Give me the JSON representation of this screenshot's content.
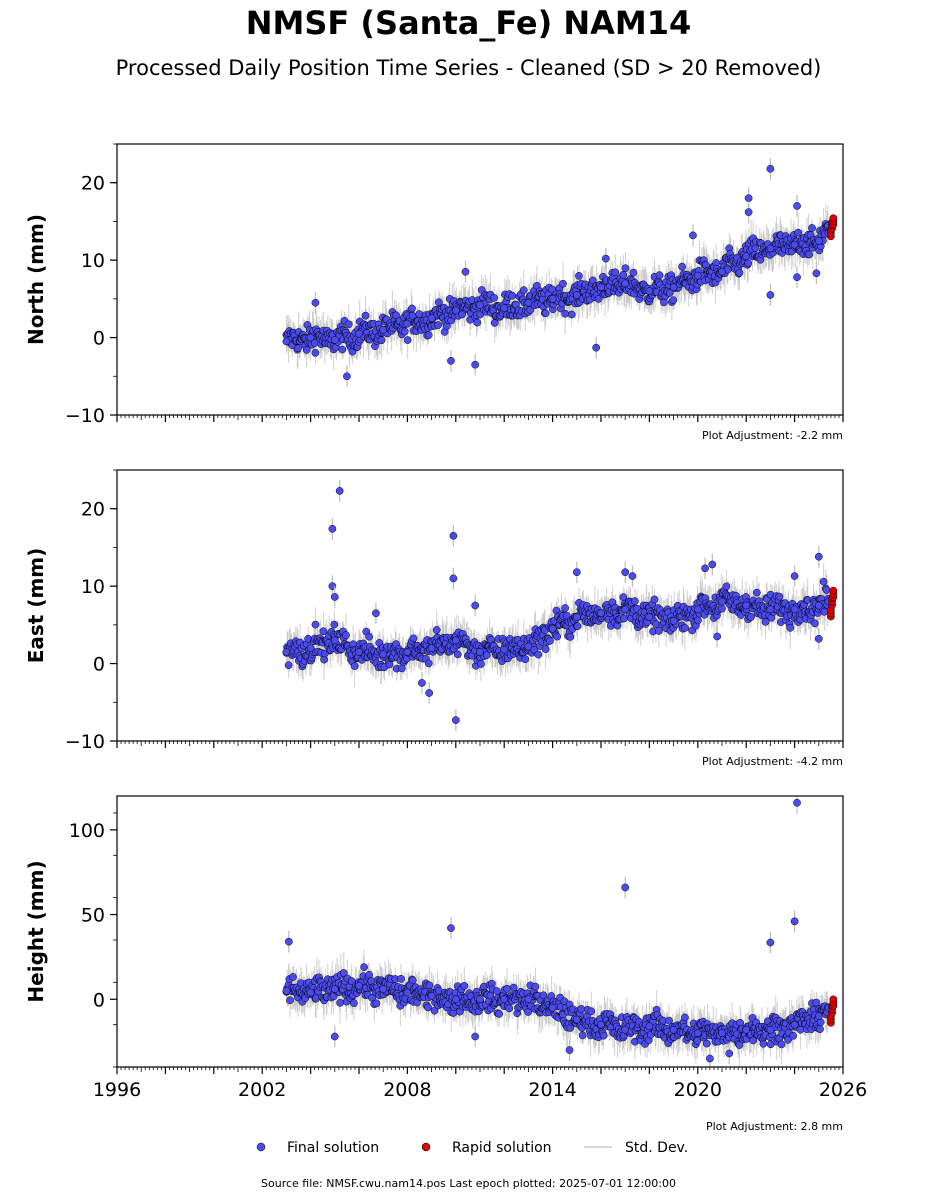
{
  "title": "NMSF (Santa_Fe) NAM14",
  "subtitle": "Processed Daily Position Time Series - Cleaned (SD > 20 Removed)",
  "source_text": "Source file: NMSF.cwu.nam14.pos  Last epoch plotted: 2025-07-01 12:00:00",
  "legend": [
    {
      "label": "Final solution",
      "color": "#4b4bf0",
      "marker": "dot"
    },
    {
      "label": "Rapid solution",
      "color": "#e00000",
      "marker": "dot"
    },
    {
      "label": "Std. Dev.",
      "color": "#cccccc",
      "marker": "line"
    }
  ],
  "colors": {
    "final": "#4b4bf0",
    "rapid": "#e00000",
    "stddev": "#bbbbbb",
    "edge": "#000000"
  },
  "chart_data": [
    {
      "type": "scatter",
      "ylabel": "North (mm)",
      "xlim": [
        1996,
        2026
      ],
      "ylim": [
        -10,
        25
      ],
      "yticks": [
        -10,
        0,
        10,
        20
      ],
      "xtick_labels": [
        "1996",
        "2002",
        "2008",
        "2014",
        "2020",
        "2026"
      ],
      "show_xtick_labels": false,
      "adjustment": "Plot Adjustment: -2.2 mm",
      "series": [
        {
          "name": "Final solution",
          "x": [
            2003.0,
            2004.0,
            2005.0,
            2006.0,
            2007.0,
            2008.0,
            2009.0,
            2010.0,
            2011.0,
            2012.0,
            2013.0,
            2014.0,
            2015.0,
            2016.0,
            2017.0,
            2018.0,
            2019.0,
            2020.0,
            2021.0,
            2022.0,
            2023.0,
            2024.0,
            2025.0,
            2025.4
          ],
          "y": [
            -0.5,
            0.0,
            -0.3,
            0.5,
            1.0,
            1.8,
            2.5,
            3.5,
            4.2,
            3.8,
            4.5,
            5.0,
            5.5,
            6.5,
            7.0,
            6.0,
            6.5,
            8.0,
            8.5,
            10.5,
            11.5,
            12.0,
            12.5,
            13.5
          ]
        },
        {
          "name": "Rapid solution",
          "x": [
            2025.5,
            2025.55,
            2025.6
          ],
          "y": [
            13.5,
            14.5,
            15.0
          ]
        }
      ],
      "outliers": [
        [
          2004.2,
          4.5
        ],
        [
          2005.5,
          -5.0
        ],
        [
          2009.8,
          -3.0
        ],
        [
          2010.4,
          8.5
        ],
        [
          2010.8,
          -3.5
        ],
        [
          2015.8,
          -1.3
        ],
        [
          2016.2,
          10.2
        ],
        [
          2019.8,
          13.2
        ],
        [
          2022.1,
          18.0
        ],
        [
          2022.1,
          16.2
        ],
        [
          2023.0,
          21.8
        ],
        [
          2023.0,
          5.5
        ],
        [
          2024.1,
          17.0
        ],
        [
          2024.1,
          7.8
        ],
        [
          2024.9,
          8.3
        ]
      ]
    },
    {
      "type": "scatter",
      "ylabel": "East (mm)",
      "xlim": [
        1996,
        2026
      ],
      "ylim": [
        -10,
        25
      ],
      "yticks": [
        -10,
        0,
        10,
        20
      ],
      "xtick_labels": [
        "1996",
        "2002",
        "2008",
        "2014",
        "2020",
        "2026"
      ],
      "show_xtick_labels": false,
      "adjustment": "Plot Adjustment: -4.2 mm",
      "series": [
        {
          "name": "Final solution",
          "x": [
            2003.0,
            2004.0,
            2005.0,
            2006.0,
            2007.0,
            2008.0,
            2009.0,
            2010.0,
            2011.0,
            2012.0,
            2013.0,
            2014.0,
            2015.0,
            2016.0,
            2017.0,
            2018.0,
            2019.0,
            2020.0,
            2021.0,
            2022.0,
            2023.0,
            2024.0,
            2025.0,
            2025.4
          ],
          "y": [
            1.5,
            2.0,
            3.0,
            1.5,
            1.2,
            1.5,
            2.0,
            3.0,
            1.5,
            1.8,
            2.2,
            4.5,
            6.0,
            6.5,
            7.0,
            6.0,
            5.5,
            7.0,
            8.0,
            7.5,
            7.0,
            7.0,
            7.5,
            8.0
          ]
        },
        {
          "name": "Rapid solution",
          "x": [
            2025.5,
            2025.55,
            2025.6
          ],
          "y": [
            6.5,
            8.0,
            9.0
          ]
        }
      ],
      "outliers": [
        [
          2004.9,
          17.4
        ],
        [
          2005.2,
          22.3
        ],
        [
          2004.9,
          10.0
        ],
        [
          2005.0,
          8.6
        ],
        [
          2006.7,
          6.5
        ],
        [
          2008.6,
          -2.5
        ],
        [
          2008.9,
          -3.8
        ],
        [
          2009.9,
          16.5
        ],
        [
          2009.9,
          11.0
        ],
        [
          2010.0,
          -7.3
        ],
        [
          2010.8,
          7.5
        ],
        [
          2015.0,
          11.8
        ],
        [
          2017.0,
          11.8
        ],
        [
          2017.3,
          11.3
        ],
        [
          2020.3,
          12.3
        ],
        [
          2020.6,
          12.8
        ],
        [
          2020.8,
          3.5
        ],
        [
          2024.0,
          11.3
        ],
        [
          2025.0,
          13.8
        ],
        [
          2025.0,
          3.2
        ]
      ]
    },
    {
      "type": "scatter",
      "ylabel": "Height (mm)",
      "xlim": [
        1996,
        2026
      ],
      "ylim": [
        -40,
        120
      ],
      "yticks": [
        0,
        50,
        100
      ],
      "xtick_labels": [
        "1996",
        "2002",
        "2008",
        "2014",
        "2020",
        "2026"
      ],
      "show_xtick_labels": true,
      "adjustment": "Plot Adjustment: 2.8 mm",
      "series": [
        {
          "name": "Final solution",
          "x": [
            2003.0,
            2004.0,
            2005.0,
            2006.0,
            2007.0,
            2008.0,
            2009.0,
            2010.0,
            2011.0,
            2012.0,
            2013.0,
            2014.0,
            2015.0,
            2016.0,
            2017.0,
            2018.0,
            2019.0,
            2020.0,
            2021.0,
            2022.0,
            2023.0,
            2024.0,
            2025.0,
            2025.4
          ],
          "y": [
            5,
            4,
            6,
            8,
            6,
            4,
            2,
            0,
            0,
            0,
            0,
            -5,
            -12,
            -15,
            -18,
            -16,
            -18,
            -20,
            -20,
            -18,
            -18,
            -15,
            -10,
            -5
          ]
        },
        {
          "name": "Rapid solution",
          "x": [
            2025.5,
            2025.55,
            2025.6
          ],
          "y": [
            -12,
            -6,
            -2
          ]
        }
      ],
      "outliers": [
        [
          2003.1,
          34.0
        ],
        [
          2009.8,
          42.0
        ],
        [
          2017.0,
          66.0
        ],
        [
          2023.0,
          33.5
        ],
        [
          2024.0,
          46.0
        ],
        [
          2024.1,
          116.0
        ],
        [
          2005.0,
          -22.0
        ],
        [
          2010.8,
          -22.0
        ],
        [
          2014.7,
          -30.0
        ],
        [
          2020.5,
          -35.0
        ],
        [
          2021.3,
          -32.0
        ]
      ]
    }
  ]
}
